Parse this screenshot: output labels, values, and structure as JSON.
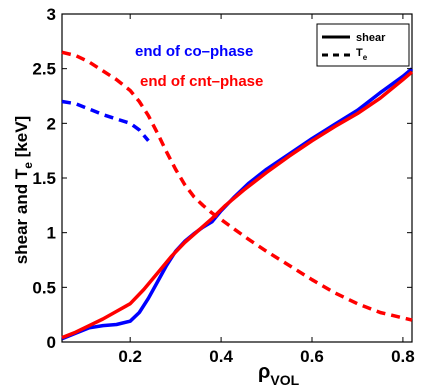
{
  "chart_data": {
    "type": "line",
    "xlim": [
      0.05,
      0.82
    ],
    "ylim": [
      0,
      3
    ],
    "x_ticks": [
      0.2,
      0.4,
      0.6,
      0.8
    ],
    "x_tick_labels": [
      "0.2",
      "0.4",
      "0.6",
      "0.8"
    ],
    "y_ticks": [
      0,
      0.5,
      1,
      1.5,
      2,
      2.5,
      3
    ],
    "y_tick_labels": [
      "0",
      "0.5",
      "1",
      "1.5",
      "2",
      "2.5",
      "3"
    ],
    "ylabel": "shear and T",
    "ylabel_sub": "e",
    "ylabel_unit": " [keV]",
    "xlabel": "ρ",
    "xlabel_sub": "VOL",
    "grid": false,
    "legend_position": "top-right",
    "legend": [
      {
        "label": "shear",
        "sub": "",
        "style": "solid"
      },
      {
        "label": "T",
        "sub": "e",
        "style": "dashed"
      }
    ],
    "annotations": [
      {
        "text": "end of co–phase",
        "color": "#0000ff"
      },
      {
        "text": "end of cnt–phase",
        "color": "#ff0000"
      }
    ],
    "series": [
      {
        "quantity": "shear",
        "phase": "co",
        "color": "#0000ff",
        "style": "solid",
        "x": [
          0.05,
          0.08,
          0.11,
          0.14,
          0.17,
          0.2,
          0.22,
          0.24,
          0.26,
          0.28,
          0.3,
          0.32,
          0.34,
          0.36,
          0.38,
          0.4,
          0.43,
          0.46,
          0.5,
          0.55,
          0.6,
          0.65,
          0.7,
          0.75,
          0.8,
          0.82
        ],
        "y": [
          0.03,
          0.08,
          0.13,
          0.15,
          0.16,
          0.19,
          0.27,
          0.4,
          0.55,
          0.7,
          0.83,
          0.92,
          0.99,
          1.05,
          1.1,
          1.2,
          1.33,
          1.45,
          1.58,
          1.72,
          1.86,
          1.99,
          2.12,
          2.28,
          2.43,
          2.5
        ]
      },
      {
        "quantity": "shear",
        "phase": "cnt",
        "color": "#ff0000",
        "style": "solid",
        "x": [
          0.05,
          0.08,
          0.11,
          0.14,
          0.17,
          0.2,
          0.23,
          0.26,
          0.29,
          0.32,
          0.35,
          0.38,
          0.41,
          0.45,
          0.5,
          0.55,
          0.6,
          0.65,
          0.7,
          0.75,
          0.8,
          0.82
        ],
        "y": [
          0.04,
          0.09,
          0.15,
          0.21,
          0.28,
          0.35,
          0.48,
          0.63,
          0.78,
          0.91,
          1.02,
          1.13,
          1.25,
          1.39,
          1.55,
          1.7,
          1.84,
          1.97,
          2.09,
          2.23,
          2.4,
          2.47
        ]
      },
      {
        "quantity": "Te",
        "phase": "co",
        "color": "#0000ff",
        "style": "dashed",
        "x": [
          0.05,
          0.08,
          0.11,
          0.14,
          0.17,
          0.2,
          0.22,
          0.24
        ],
        "y": [
          2.2,
          2.18,
          2.13,
          2.08,
          2.04,
          2.0,
          1.94,
          1.84
        ]
      },
      {
        "quantity": "Te",
        "phase": "cnt",
        "color": "#ff0000",
        "style": "dashed",
        "x": [
          0.05,
          0.08,
          0.11,
          0.14,
          0.17,
          0.2,
          0.22,
          0.24,
          0.26,
          0.28,
          0.3,
          0.32,
          0.34,
          0.36,
          0.38,
          0.4,
          0.43,
          0.46,
          0.5,
          0.55,
          0.6,
          0.65,
          0.7,
          0.75,
          0.8,
          0.82
        ],
        "y": [
          2.65,
          2.62,
          2.56,
          2.48,
          2.4,
          2.3,
          2.2,
          2.07,
          1.91,
          1.74,
          1.58,
          1.44,
          1.33,
          1.25,
          1.18,
          1.12,
          1.03,
          0.94,
          0.83,
          0.7,
          0.57,
          0.45,
          0.35,
          0.27,
          0.22,
          0.2
        ]
      }
    ]
  }
}
